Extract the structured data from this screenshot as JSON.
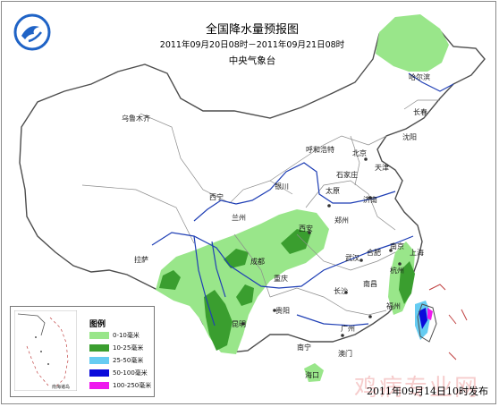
{
  "title": "全国降水量预报图",
  "subtitle": "2011年09月20日08时－2011年09月21日08时",
  "agency": "中央气象台",
  "publish_note": "2011年09月14日10时发布",
  "watermark": "鸡病专业网",
  "logo_icon": "cma-logo-icon",
  "legend": {
    "title": "图例",
    "items": [
      {
        "label": "0-10毫米",
        "color": "#99e68a"
      },
      {
        "label": "10-25毫米",
        "color": "#3a9e2f"
      },
      {
        "label": "25-50毫米",
        "color": "#66ccf2"
      },
      {
        "label": "50-100毫米",
        "color": "#0a0adb"
      },
      {
        "label": "100-250毫米",
        "color": "#ee18ee"
      }
    ],
    "inset_label": "南海诸岛"
  },
  "cities": [
    {
      "name": "乌鲁木齐"
    },
    {
      "name": "哈尔滨"
    },
    {
      "name": "长春"
    },
    {
      "name": "沈阳"
    },
    {
      "name": "呼和浩特"
    },
    {
      "name": "北京"
    },
    {
      "name": "天津"
    },
    {
      "name": "石家庄"
    },
    {
      "name": "太原"
    },
    {
      "name": "银川"
    },
    {
      "name": "济南"
    },
    {
      "name": "西宁"
    },
    {
      "name": "兰州"
    },
    {
      "name": "郑州"
    },
    {
      "name": "西安"
    },
    {
      "name": "拉萨"
    },
    {
      "name": "成都"
    },
    {
      "name": "合肥"
    },
    {
      "name": "南京"
    },
    {
      "name": "上海"
    },
    {
      "name": "武汉"
    },
    {
      "name": "重庆"
    },
    {
      "name": "杭州"
    },
    {
      "name": "长沙"
    },
    {
      "name": "南昌"
    },
    {
      "name": "贵阳"
    },
    {
      "name": "福州"
    },
    {
      "name": "昆明"
    },
    {
      "name": "广州"
    },
    {
      "name": "南宁"
    },
    {
      "name": "澳门"
    },
    {
      "name": "海口"
    }
  ]
}
